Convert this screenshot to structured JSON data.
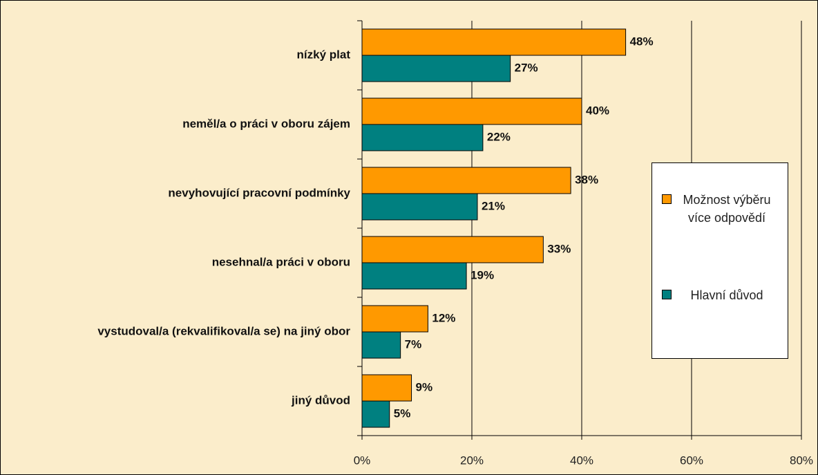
{
  "chart_data": {
    "type": "barh",
    "categories": [
      "nízký plat",
      "neměl/a o práci v oboru zájem",
      "nevyhovující pracovní podmínky",
      "nesehnal/a práci v oboru",
      "vystudoval/a (rekvalifikoval/a se) na jiný obor",
      "jiný důvod"
    ],
    "series": [
      {
        "name": "Možnost výběru více odpovědí",
        "color": "#ff9900",
        "values": [
          48,
          40,
          38,
          33,
          12,
          9
        ],
        "value_labels": [
          "48%",
          "40%",
          "38%",
          "33%",
          "12%",
          "9%"
        ]
      },
      {
        "name": "Hlavní důvod",
        "color": "#008080",
        "values": [
          27,
          22,
          21,
          19,
          7,
          5
        ],
        "value_labels": [
          "27%",
          "22%",
          "21%",
          "19%",
          "7%",
          "5%"
        ]
      }
    ],
    "xlim": [
      0,
      80
    ],
    "xticks": [
      {
        "value": 0,
        "label": "0%"
      },
      {
        "value": 20,
        "label": "20%"
      },
      {
        "value": 40,
        "label": "40%"
      },
      {
        "value": 60,
        "label": "60%"
      },
      {
        "value": 80,
        "label": "80%"
      }
    ],
    "grid": true,
    "legend": "right"
  }
}
